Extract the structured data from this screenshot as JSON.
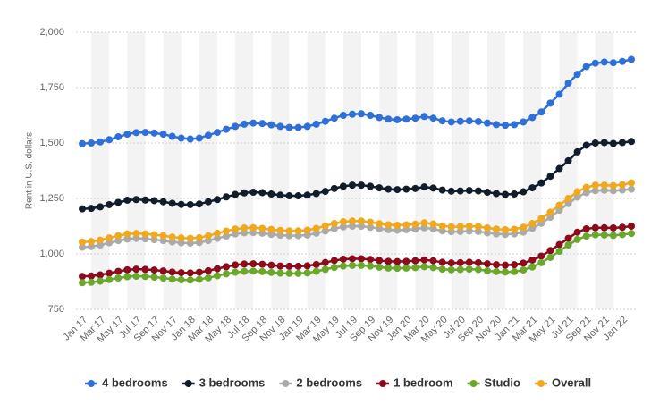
{
  "chart_data": {
    "type": "line",
    "y_label": "Rent in U.S. dollars",
    "categories": [
      "Jan 17",
      null,
      "Mar 17",
      null,
      "May 17",
      null,
      "Jul 17",
      null,
      "Sep 17",
      null,
      "Nov 17",
      null,
      "Jan 18",
      null,
      "Mar 18",
      null,
      "May 18",
      null,
      "Jul 18",
      null,
      "Sep 18",
      null,
      "Nov 18",
      null,
      "Jan 19",
      null,
      "Mar 19",
      null,
      "May 19",
      null,
      "Jul 19",
      null,
      "Sep 19",
      null,
      "Nov 19",
      null,
      "Jan 20",
      null,
      "Mar 20",
      null,
      "May 20",
      null,
      "Jul 20",
      null,
      "Sep 20",
      null,
      "Nov 20",
      null,
      "Jan 21",
      null,
      "Mar 21",
      null,
      "May 21",
      null,
      "Jul 21",
      null,
      "Sep 21",
      null,
      "Nov 21",
      null,
      "Jan 22",
      null
    ],
    "ylim": [
      750,
      2000
    ],
    "yticks": [
      750,
      {
        "value": 1000,
        "label": "1,000"
      },
      {
        "value": 1250,
        "label": "1,250"
      },
      {
        "value": 1500,
        "label": "1,500"
      },
      {
        "value": 1750,
        "label": "1,750"
      },
      {
        "value": 2000,
        "label": "2,000"
      }
    ],
    "grid": true,
    "legend": "bottom",
    "series": [
      {
        "name": "4 bedrooms",
        "color": "#2f6fd8",
        "values": [
          1497,
          1500,
          1505,
          1515,
          1528,
          1540,
          1547,
          1548,
          1545,
          1540,
          1530,
          1522,
          1518,
          1522,
          1535,
          1548,
          1562,
          1575,
          1585,
          1590,
          1588,
          1582,
          1575,
          1570,
          1570,
          1575,
          1585,
          1598,
          1612,
          1625,
          1630,
          1632,
          1625,
          1615,
          1608,
          1605,
          1608,
          1612,
          1620,
          1612,
          1600,
          1595,
          1598,
          1600,
          1597,
          1590,
          1583,
          1580,
          1583,
          1595,
          1615,
          1640,
          1680,
          1720,
          1770,
          1810,
          1845,
          1860,
          1865,
          1862,
          1868,
          1877
        ]
      },
      {
        "name": "3 bedrooms",
        "color": "#111d2c",
        "values": [
          1203,
          1205,
          1212,
          1222,
          1232,
          1242,
          1245,
          1243,
          1240,
          1235,
          1228,
          1223,
          1222,
          1225,
          1235,
          1245,
          1257,
          1268,
          1275,
          1278,
          1276,
          1270,
          1265,
          1262,
          1262,
          1265,
          1272,
          1282,
          1295,
          1305,
          1310,
          1310,
          1305,
          1298,
          1292,
          1290,
          1292,
          1295,
          1302,
          1297,
          1288,
          1283,
          1284,
          1286,
          1284,
          1278,
          1272,
          1268,
          1270,
          1280,
          1298,
          1320,
          1350,
          1385,
          1420,
          1460,
          1490,
          1500,
          1502,
          1498,
          1502,
          1507
        ]
      },
      {
        "name": "2 bedrooms",
        "color": "#aaaaaa",
        "values": [
          1030,
          1033,
          1040,
          1050,
          1060,
          1067,
          1070,
          1068,
          1064,
          1060,
          1054,
          1050,
          1048,
          1051,
          1060,
          1070,
          1080,
          1090,
          1095,
          1096,
          1093,
          1088,
          1084,
          1082,
          1082,
          1085,
          1093,
          1103,
          1114,
          1122,
          1125,
          1125,
          1120,
          1114,
          1109,
          1107,
          1109,
          1112,
          1118,
          1113,
          1104,
          1100,
          1101,
          1103,
          1101,
          1095,
          1090,
          1088,
          1090,
          1098,
          1115,
          1138,
          1165,
          1197,
          1227,
          1256,
          1276,
          1285,
          1287,
          1285,
          1288,
          1292
        ]
      },
      {
        "name": "1 bedroom",
        "color": "#8c0a1c",
        "values": [
          898,
          900,
          905,
          913,
          921,
          928,
          931,
          930,
          927,
          923,
          918,
          915,
          914,
          917,
          924,
          933,
          942,
          950,
          954,
          955,
          953,
          949,
          945,
          944,
          944,
          946,
          952,
          961,
          970,
          976,
          978,
          978,
          975,
          970,
          966,
          965,
          966,
          969,
          973,
          969,
          962,
          959,
          960,
          962,
          960,
          955,
          951,
          949,
          951,
          958,
          972,
          990,
          1015,
          1042,
          1070,
          1098,
          1113,
          1118,
          1118,
          1117,
          1120,
          1125
        ]
      },
      {
        "name": "Studio",
        "color": "#6aa82c",
        "values": [
          870,
          872,
          877,
          884,
          891,
          897,
          899,
          898,
          895,
          891,
          886,
          883,
          882,
          885,
          892,
          901,
          910,
          917,
          921,
          922,
          920,
          916,
          913,
          912,
          912,
          914,
          921,
          930,
          939,
          945,
          948,
          948,
          945,
          940,
          936,
          935,
          936,
          938,
          942,
          938,
          931,
          928,
          929,
          931,
          929,
          924,
          920,
          918,
          920,
          927,
          941,
          960,
          984,
          1012,
          1040,
          1065,
          1080,
          1086,
          1085,
          1083,
          1087,
          1092
        ]
      },
      {
        "name": "Overall",
        "color": "#f0a81e",
        "values": [
          1053,
          1056,
          1062,
          1072,
          1082,
          1090,
          1092,
          1090,
          1086,
          1082,
          1076,
          1072,
          1070,
          1073,
          1082,
          1093,
          1103,
          1112,
          1117,
          1118,
          1115,
          1110,
          1106,
          1104,
          1104,
          1107,
          1115,
          1126,
          1137,
          1145,
          1148,
          1148,
          1143,
          1136,
          1131,
          1129,
          1131,
          1134,
          1140,
          1135,
          1126,
          1122,
          1123,
          1125,
          1123,
          1117,
          1112,
          1109,
          1111,
          1120,
          1137,
          1160,
          1188,
          1220,
          1250,
          1280,
          1300,
          1310,
          1310,
          1308,
          1312,
          1320
        ]
      }
    ]
  }
}
